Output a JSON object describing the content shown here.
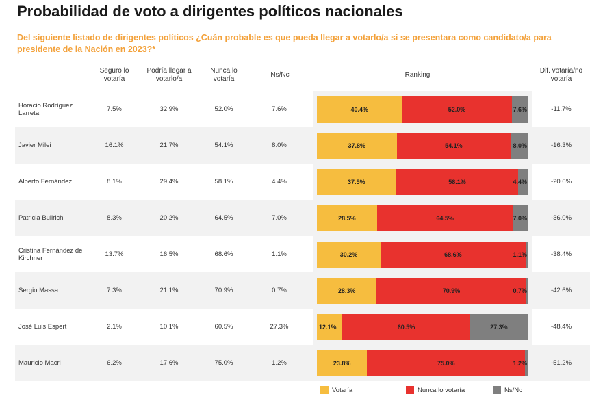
{
  "title": "Probabilidad de voto a dirigentes políticos nacionales",
  "subtitle": "Del siguiente listado de dirigentes políticos ¿Cuán probable es que pueda llegar a votarlo/a si se presentara como candidato/a para presidente de la Nación en 2023?*",
  "headers": {
    "seguro": "Seguro lo votaría",
    "podria": "Podría llegar a votarlo/a",
    "nunca": "Nunca lo votaría",
    "nsnc": "Ns/Nc",
    "ranking": "Ranking",
    "dif": "Dif. votaría/no votaría"
  },
  "colors": {
    "votaria": "#f6bd3f",
    "nunca": "#e8322e",
    "nsnc": "#7f7f7f"
  },
  "legend": {
    "votaria": "Votaría",
    "nunca": "Nunca lo votaría",
    "nsnc": "Ns/Nc"
  },
  "chart_data": {
    "type": "table",
    "columns": [
      "Seguro lo votaría",
      "Podría llegar a votarlo/a",
      "Nunca lo votaría",
      "Ns/Nc",
      "Ranking",
      "Dif. votaría/no votaría"
    ],
    "rows": [
      {
        "name": "Horacio Rodríguez Larreta",
        "seguro": "7.5%",
        "podria": "32.9%",
        "nunca": "52.0%",
        "nsnc": "7.6%",
        "bar": {
          "votaria": 40.4,
          "nunca": 52.0,
          "nsnc": 7.6
        },
        "bar_labels": {
          "votaria": "40.4%",
          "nunca": "52.0%",
          "nsnc": "7.6%"
        },
        "dif": "-11.7%"
      },
      {
        "name": "Javier Milei",
        "seguro": "16.1%",
        "podria": "21.7%",
        "nunca": "54.1%",
        "nsnc": "8.0%",
        "bar": {
          "votaria": 37.8,
          "nunca": 54.1,
          "nsnc": 8.0
        },
        "bar_labels": {
          "votaria": "37.8%",
          "nunca": "54.1%",
          "nsnc": "8.0%"
        },
        "dif": "-16.3%"
      },
      {
        "name": "Alberto Fernández",
        "seguro": "8.1%",
        "podria": "29.4%",
        "nunca": "58.1%",
        "nsnc": "4.4%",
        "bar": {
          "votaria": 37.5,
          "nunca": 58.1,
          "nsnc": 4.4
        },
        "bar_labels": {
          "votaria": "37.5%",
          "nunca": "58.1%",
          "nsnc": "4.4%"
        },
        "dif": "-20.6%"
      },
      {
        "name": "Patricia Bullrich",
        "seguro": "8.3%",
        "podria": "20.2%",
        "nunca": "64.5%",
        "nsnc": "7.0%",
        "bar": {
          "votaria": 28.5,
          "nunca": 64.5,
          "nsnc": 7.0
        },
        "bar_labels": {
          "votaria": "28.5%",
          "nunca": "64.5%",
          "nsnc": "7.0%"
        },
        "dif": "-36.0%"
      },
      {
        "name": "Cristina Fernández de Kirchner",
        "seguro": "13.7%",
        "podria": "16.5%",
        "nunca": "68.6%",
        "nsnc": "1.1%",
        "bar": {
          "votaria": 30.2,
          "nunca": 68.6,
          "nsnc": 1.1
        },
        "bar_labels": {
          "votaria": "30.2%",
          "nunca": "68.6%",
          "nsnc": "1.1%"
        },
        "dif": "-38.4%"
      },
      {
        "name": "Sergio Massa",
        "seguro": "7.3%",
        "podria": "21.1%",
        "nunca": "70.9%",
        "nsnc": "0.7%",
        "bar": {
          "votaria": 28.3,
          "nunca": 70.9,
          "nsnc": 0.7
        },
        "bar_labels": {
          "votaria": "28.3%",
          "nunca": "70.9%",
          "nsnc": "0.7%"
        },
        "dif": "-42.6%"
      },
      {
        "name": "José Luis Espert",
        "seguro": "2.1%",
        "podria": "10.1%",
        "nunca": "60.5%",
        "nsnc": "27.3%",
        "bar": {
          "votaria": 12.1,
          "nunca": 60.5,
          "nsnc": 27.3
        },
        "bar_labels": {
          "votaria": "12.1%",
          "nunca": "60.5%",
          "nsnc": "27.3%"
        },
        "dif": "-48.4%"
      },
      {
        "name": "Mauricio Macri",
        "seguro": "6.2%",
        "podria": "17.6%",
        "nunca": "75.0%",
        "nsnc": "1.2%",
        "bar": {
          "votaria": 23.8,
          "nunca": 75.0,
          "nsnc": 1.2
        },
        "bar_labels": {
          "votaria": "23.8%",
          "nunca": "75.0%",
          "nsnc": "1.2%"
        },
        "dif": "-51.2%"
      }
    ]
  }
}
